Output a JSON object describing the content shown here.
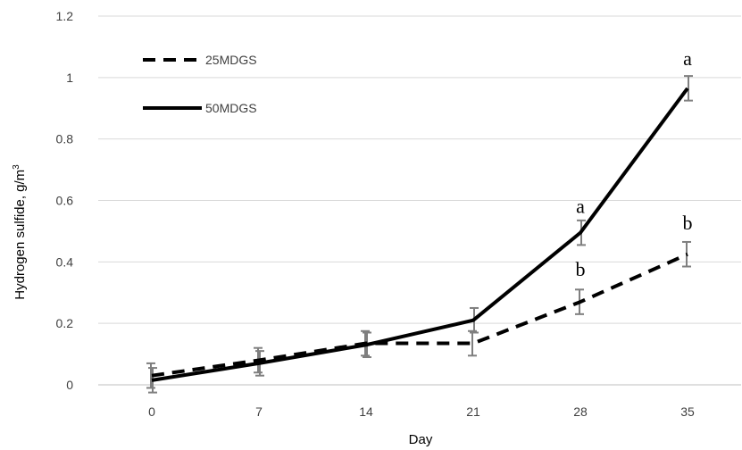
{
  "chart_data": {
    "type": "line",
    "title": "",
    "xlabel": "Day",
    "ylabel": "Hydrogen sulfide, g/m",
    "ylabel_superscript": "3",
    "x": [
      0,
      7,
      14,
      21,
      28,
      35
    ],
    "x_tick_labels": [
      "0",
      "7",
      "14",
      "21",
      "28",
      "35"
    ],
    "ylim": [
      0,
      1.2
    ],
    "y_ticks": [
      0,
      0.2,
      0.4,
      0.6,
      0.8,
      1,
      1.2
    ],
    "y_tick_labels": [
      "0",
      "0.2",
      "0.4",
      "0.6",
      "0.8",
      "1",
      "1.2"
    ],
    "grid": "horizontal",
    "legend_position": "top-left",
    "series": [
      {
        "name": "25MDGS",
        "style": "dashed",
        "color": "#000000",
        "values": [
          0.03,
          0.08,
          0.135,
          0.135,
          0.27,
          0.425
        ],
        "errors": [
          0.04,
          0.04,
          0.04,
          0.04,
          0.04,
          0.04
        ]
      },
      {
        "name": "50MDGS",
        "style": "solid",
        "color": "#000000",
        "values": [
          0.015,
          0.07,
          0.13,
          0.21,
          0.495,
          0.965
        ],
        "errors": [
          0.04,
          0.04,
          0.04,
          0.04,
          0.04,
          0.04
        ]
      }
    ],
    "annotations": [
      {
        "text": "a",
        "x": 28,
        "y": 0.56
      },
      {
        "text": "b",
        "x": 28,
        "y": 0.355
      },
      {
        "text": "a",
        "x": 35,
        "y": 1.04
      },
      {
        "text": "b",
        "x": 35,
        "y": 0.505
      }
    ]
  }
}
